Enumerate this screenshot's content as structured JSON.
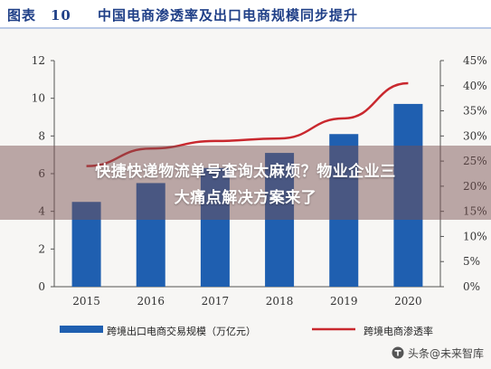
{
  "header": {
    "figure_number": "图表　10",
    "title": "中国电商渗透率及出口电商规模同步提升"
  },
  "overlay": {
    "line1": "快捷快递物流单号查询太麻烦？物业企业三",
    "line2": "大痛点解决方案来了"
  },
  "legend": {
    "bar_label": "跨境出口电商交易规模（万亿元）",
    "line_label": "跨境电商渗透率"
  },
  "watermark": {
    "text": "头条@未来智库"
  },
  "colors": {
    "bar": "#1f5fb0",
    "line": "#c9282e",
    "header_text": "#1f3f87"
  },
  "chart_data": {
    "type": "bar+line",
    "categories": [
      "2015",
      "2016",
      "2017",
      "2018",
      "2019",
      "2020"
    ],
    "series": [
      {
        "name": "跨境出口电商交易规模（万亿元）",
        "type": "bar",
        "axis": "left",
        "values": [
          4.5,
          5.5,
          6.3,
          7.1,
          8.1,
          9.7
        ]
      },
      {
        "name": "跨境电商渗透率",
        "type": "line",
        "axis": "right",
        "values": [
          24.0,
          27.5,
          29.0,
          29.5,
          33.5,
          40.5
        ]
      }
    ],
    "y_left": {
      "min": 0,
      "max": 12,
      "ticks": [
        "0",
        "2",
        "4",
        "6",
        "8",
        "10",
        "12"
      ]
    },
    "y_right": {
      "min": 0,
      "max": 45,
      "ticks": [
        "0%",
        "5%",
        "10%",
        "15%",
        "20%",
        "25%",
        "30%",
        "35%",
        "40%",
        "45%"
      ]
    },
    "grid": false,
    "legend_position": "bottom"
  }
}
